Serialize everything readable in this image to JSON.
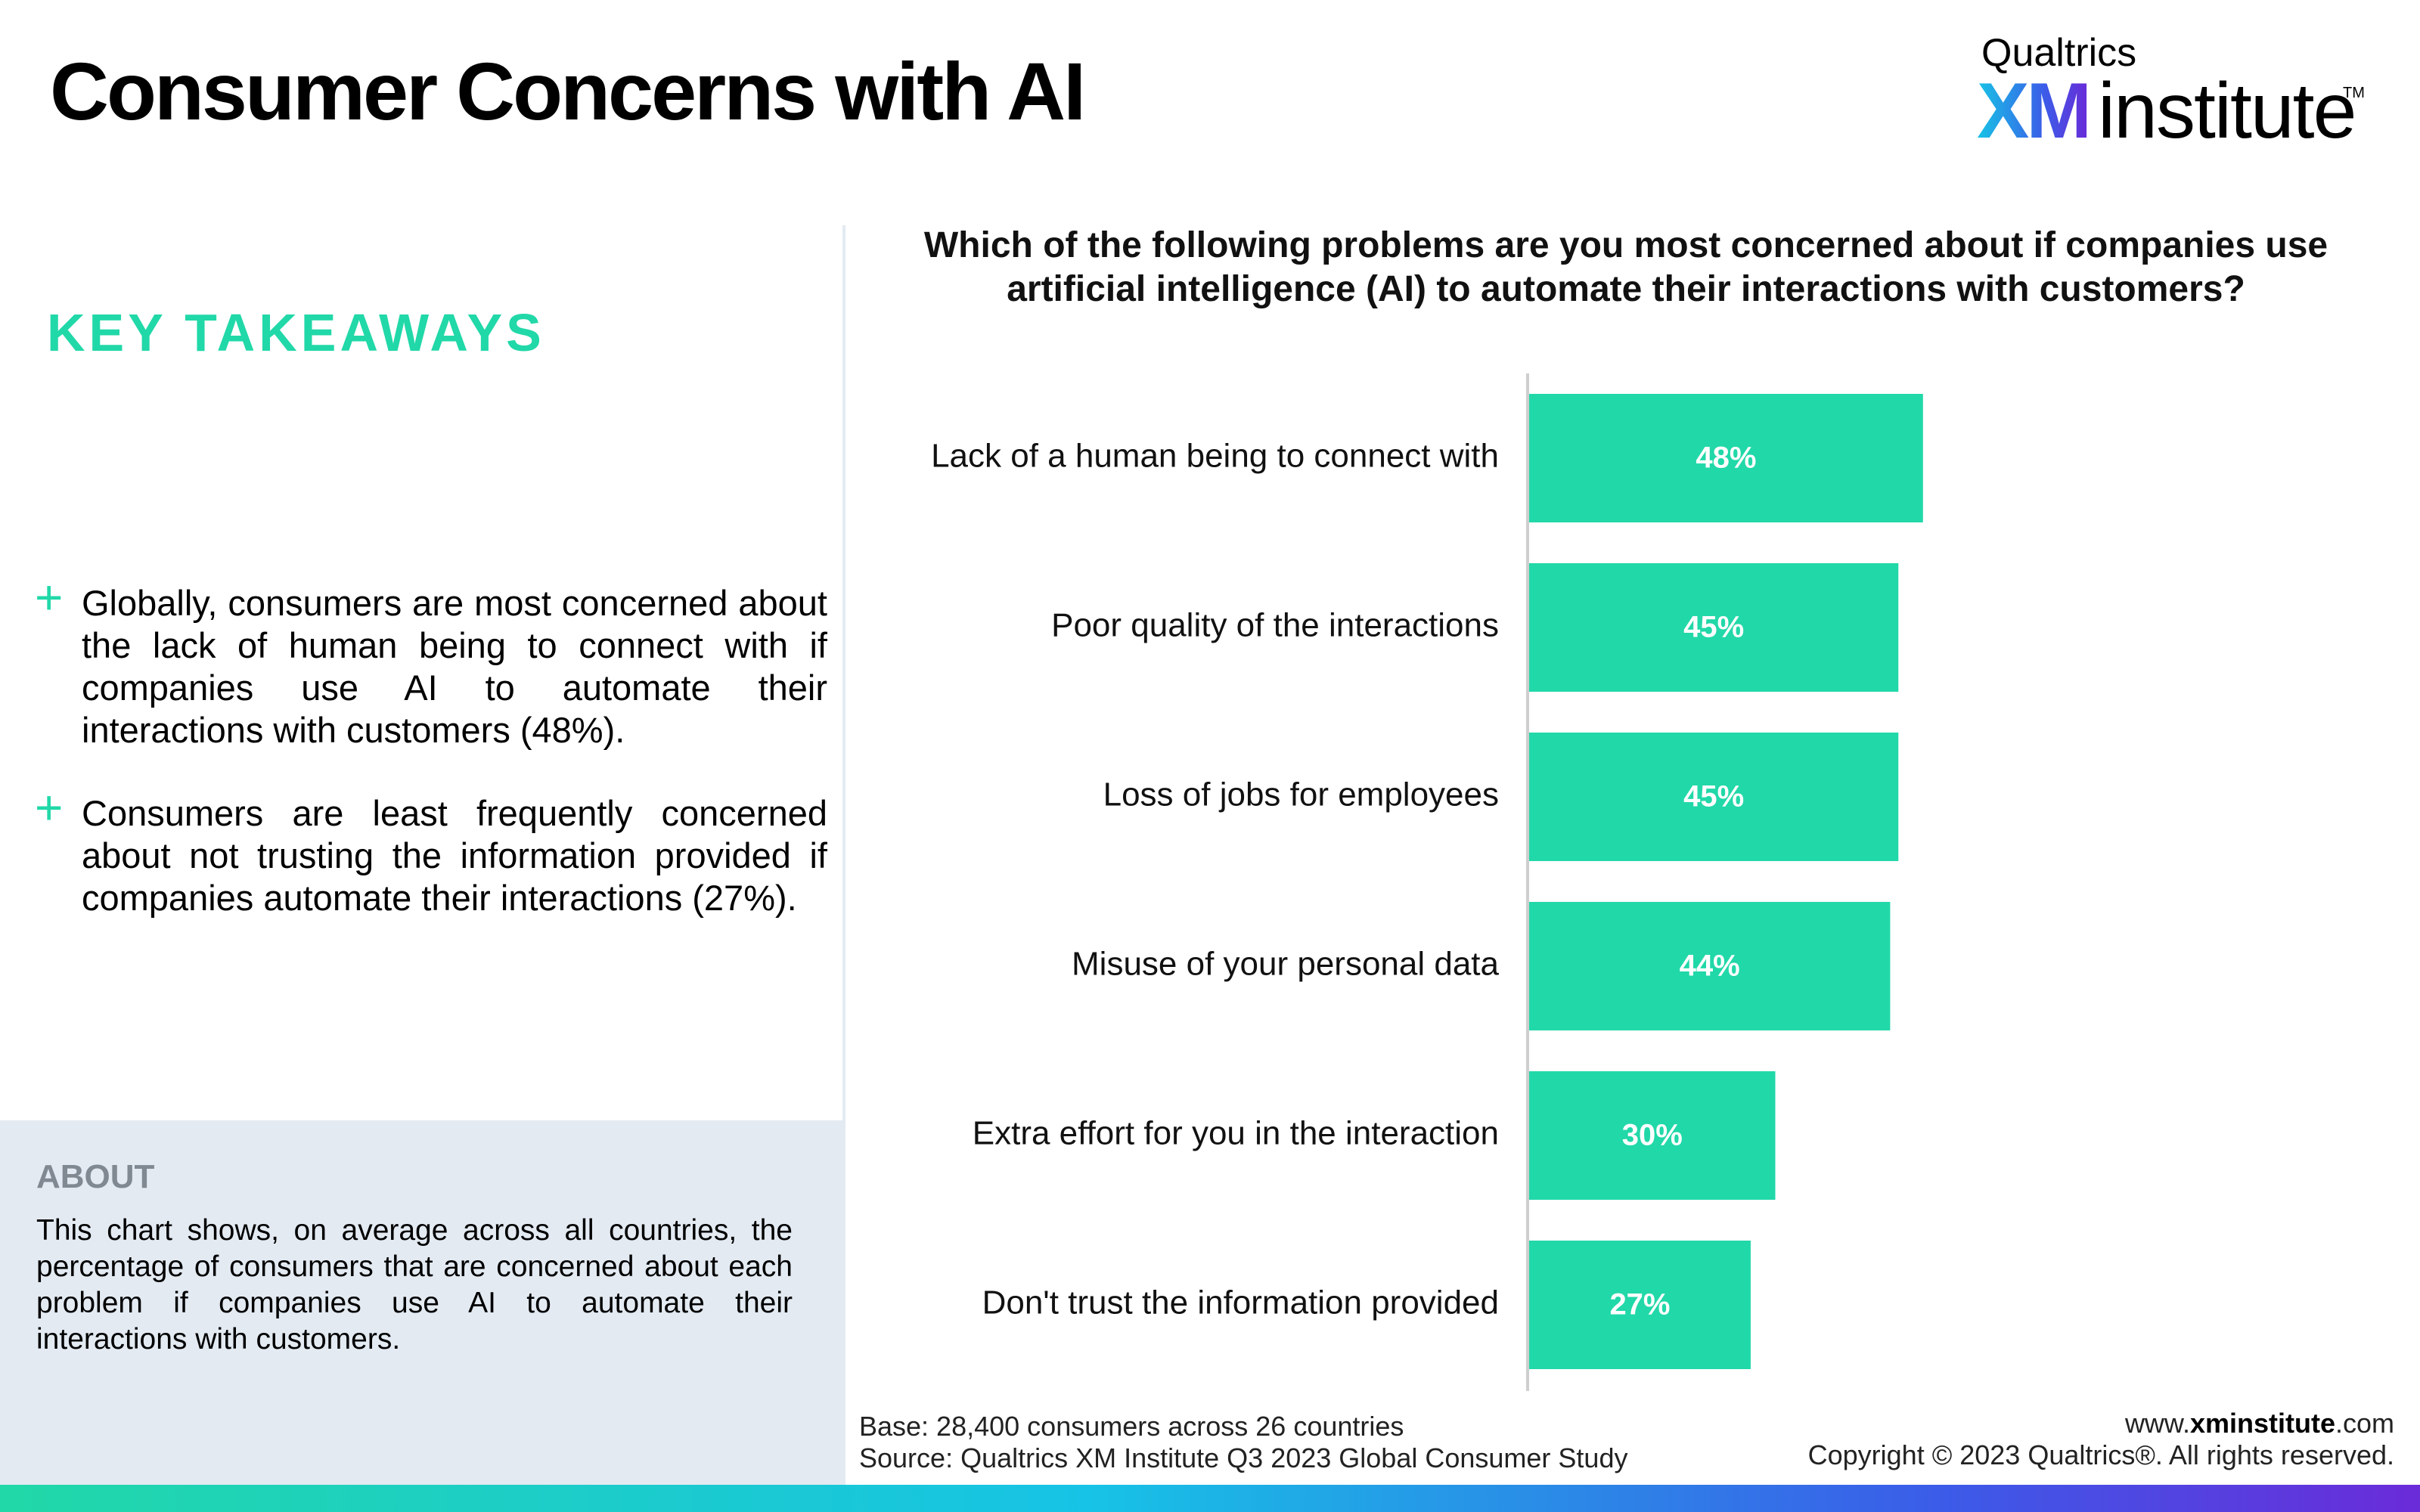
{
  "header": {
    "title": "Consumer Concerns with AI",
    "logo": {
      "top": "Qualtrics",
      "xm": "XM",
      "institute": "institute",
      "tm": "TM"
    }
  },
  "key_takeaways": {
    "heading": "KEY TAKEAWAYS",
    "bullets": [
      "Globally, consumers are most concerned about the lack of human being to connect with if companies use AI to automate their interactions with customers (48%).",
      "Consumers are least frequently concerned about not trusting the information provided if companies automate their interactions (27%)."
    ]
  },
  "about": {
    "heading": "ABOUT",
    "text": "This chart shows, on average across all countries, the percentage of consumers that are concerned about each problem if companies use AI to automate their interactions with customers."
  },
  "footer": {
    "base": "Base: 28,400 consumers across 26 countries",
    "source": "Source: Qualtrics XM Institute Q3 2023 Global Consumer Study",
    "website_prefix": "www.",
    "website_bold": "xminstitute",
    "website_suffix": ".com",
    "copyright": "Copyright © 2023 Qualtrics®. All rights reserved."
  },
  "colors": {
    "accent": "#21d8a8",
    "bar": "#21d8a8",
    "bar_label": "#ffffff",
    "axis": "#cfcfcf",
    "about_bg": "#e3eaf2"
  },
  "chart_data": {
    "type": "bar",
    "orientation": "horizontal",
    "title": "Which of the following problems are you most concerned about if companies use artificial intelligence (AI) to automate their interactions with customers?",
    "categories": [
      "Lack of a human being to connect with",
      "Poor quality of the interactions",
      "Loss of jobs for employees",
      "Misuse of your personal data",
      "Extra effort for you in the interaction",
      "Don't trust the information provided"
    ],
    "values": [
      48,
      45,
      45,
      44,
      30,
      27
    ],
    "value_labels": [
      "48%",
      "45%",
      "45%",
      "44%",
      "30%",
      "27%"
    ],
    "unit": "%",
    "xlim": [
      0,
      100
    ],
    "grid": false,
    "legend": "none"
  }
}
